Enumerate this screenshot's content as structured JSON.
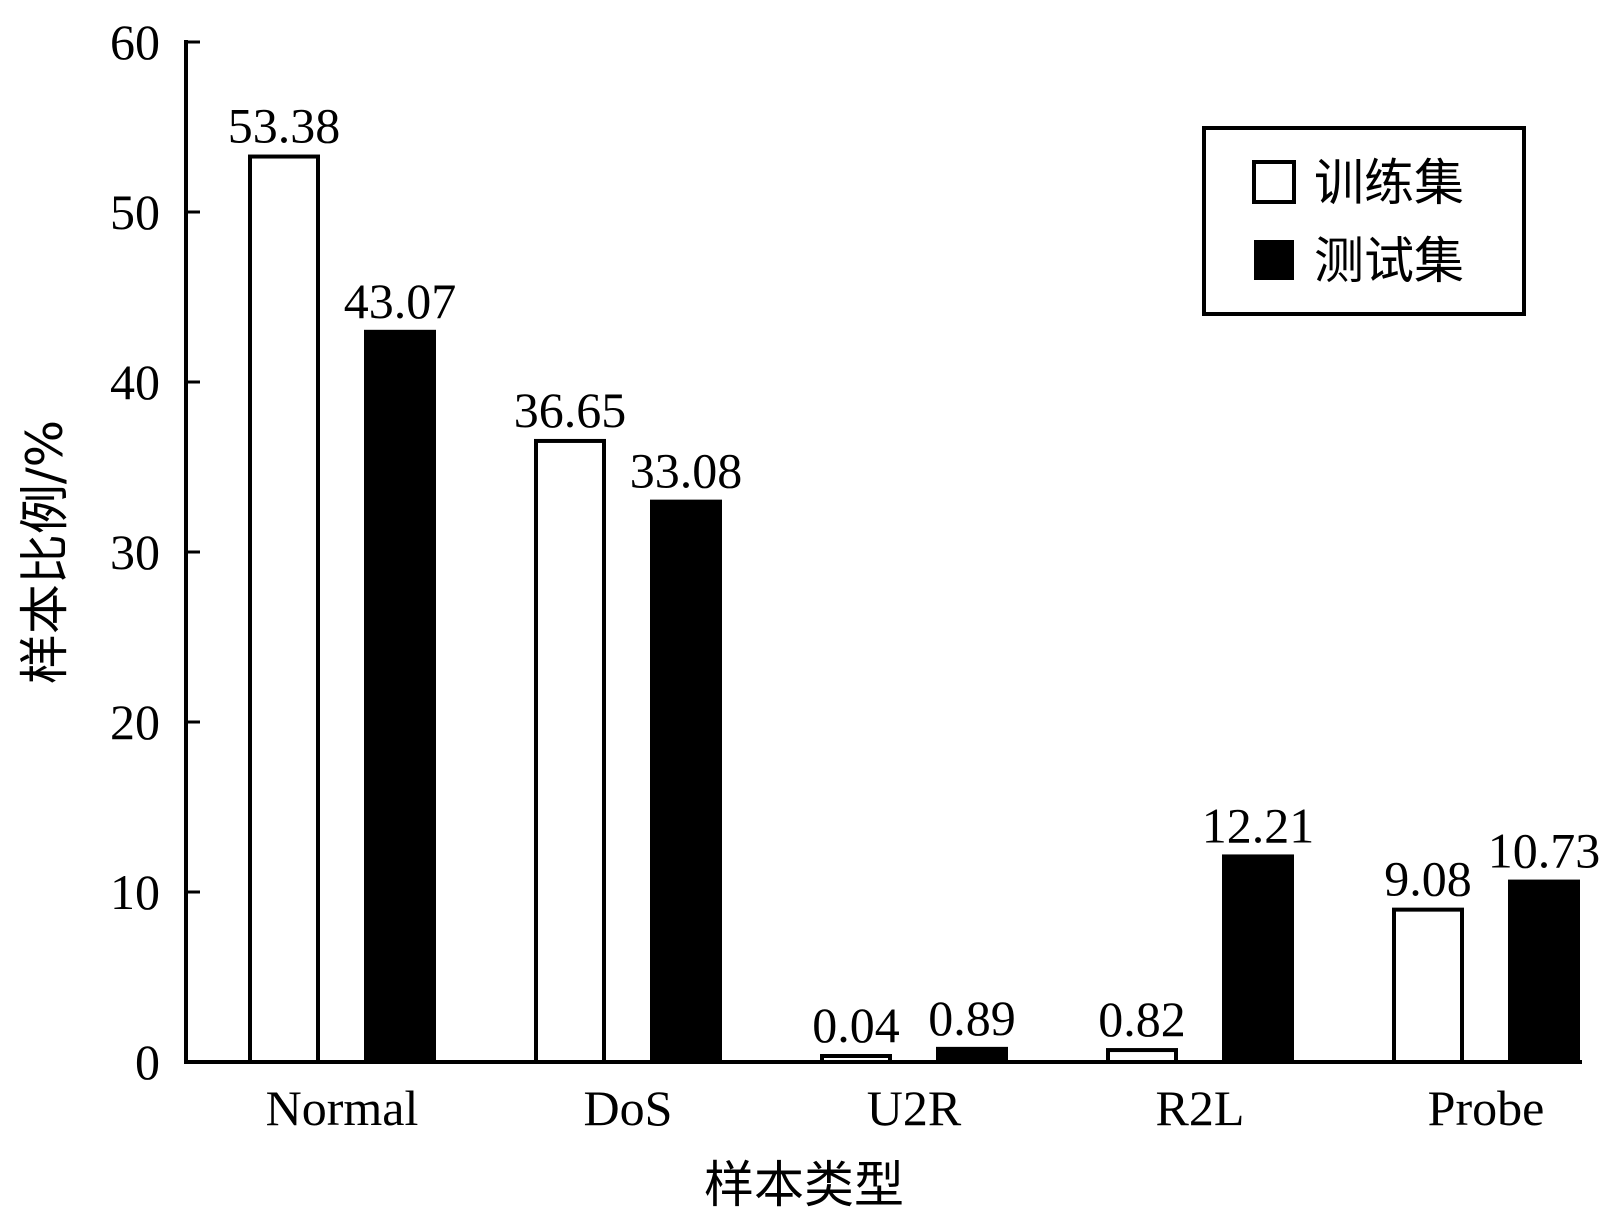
{
  "chart_data": {
    "type": "bar",
    "categories": [
      "Normal",
      "DoS",
      "U2R",
      "R2L",
      "Probe"
    ],
    "series": [
      {
        "name": "训练集",
        "values": [
          53.38,
          36.65,
          0.04,
          0.82,
          9.08
        ],
        "labels": [
          "53.38",
          "36.65",
          "0.04",
          "0.82",
          "9.08"
        ],
        "color": "#ffffff"
      },
      {
        "name": "测试集",
        "values": [
          43.07,
          33.08,
          0.89,
          12.21,
          10.73
        ],
        "labels": [
          "43.07",
          "33.08",
          "0.89",
          "12.21",
          "10.73"
        ],
        "color": "#000000"
      }
    ],
    "xlabel": "样本类型",
    "ylabel": "样本比例/%",
    "ylim": [
      0,
      60
    ],
    "yticks": [
      0,
      10,
      20,
      30,
      40,
      50,
      60
    ],
    "ytick_labels": [
      "0",
      "10",
      "20",
      "30",
      "40",
      "50",
      "60"
    ],
    "grid": false,
    "legend_position": "top-right"
  }
}
